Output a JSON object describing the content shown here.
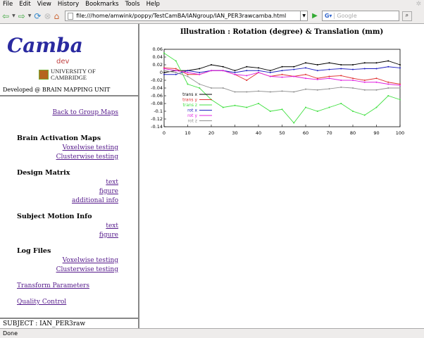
{
  "browser": {
    "menu": [
      "File",
      "Edit",
      "View",
      "History",
      "Bookmarks",
      "Tools",
      "Help"
    ],
    "url": "file:///home/amwink/poppy/TestCamBA/IANgroup/IAN_PER3rawcamba.html",
    "search_placeholder": "Google",
    "status": "Done"
  },
  "sidebar": {
    "logo": {
      "name": "Camba",
      "sub": "dev",
      "university": "UNIVERSITY OF",
      "university2": "CAMBRIDGE"
    },
    "developed": "Developed @ BRAIN MAPPING UNIT",
    "back": "Back to Group Maps",
    "sections": {
      "activation": {
        "title": "Brain Activation Maps",
        "links": [
          "Voxelwise testing",
          "Clusterwise testing"
        ]
      },
      "design": {
        "title": "Design Matrix",
        "links": [
          "text",
          "figure",
          "additional info"
        ]
      },
      "motion": {
        "title": "Subject Motion Info",
        "links": [
          "text",
          "figure"
        ]
      },
      "log": {
        "title": "Log Files",
        "links": [
          "Voxelwise testing",
          "Clusterwise testing"
        ]
      }
    },
    "transform": "Transform Parameters",
    "quality": "Quality Control",
    "subject": "SUBJECT : IAN_PER3raw"
  },
  "main": {
    "title": "Illustration : Rotation (degree) & Translation (mm)"
  },
  "chart_data": {
    "type": "line",
    "title": "",
    "xlim": [
      0,
      100
    ],
    "ylim": [
      -0.14,
      0.06
    ],
    "xticks": [
      0,
      10,
      20,
      30,
      40,
      50,
      60,
      70,
      80,
      90,
      100
    ],
    "yticks": [
      0.06,
      0.04,
      0.02,
      0,
      -0.02,
      -0.04,
      -0.06,
      -0.08,
      -0.1,
      -0.12,
      -0.14
    ],
    "yticklabels": [
      "0.06",
      "0.04",
      "0.02",
      "0",
      "-0.02",
      "-0.04",
      "-0.06",
      "-0.08",
      "-0.1",
      "-0.12",
      "-0.14"
    ],
    "legend_position": "bottom-left",
    "grid": false,
    "x": [
      0,
      5,
      10,
      15,
      20,
      25,
      30,
      35,
      40,
      45,
      50,
      55,
      60,
      65,
      70,
      75,
      80,
      85,
      90,
      95,
      100
    ],
    "series": [
      {
        "name": "trans x",
        "color": "#000000",
        "values": [
          0,
          0.005,
          0.005,
          0.01,
          0.02,
          0.015,
          0.005,
          0.015,
          0.012,
          0.005,
          0.015,
          0.015,
          0.025,
          0.02,
          0.025,
          0.02,
          0.02,
          0.025,
          0.025,
          0.03,
          0.02
        ]
      },
      {
        "name": "trans y",
        "color": "#e03030",
        "values": [
          0.012,
          0.01,
          -0.005,
          -0.005,
          0.005,
          0.005,
          -0.005,
          -0.02,
          0,
          -0.01,
          -0.005,
          -0.01,
          -0.005,
          -0.015,
          -0.01,
          -0.008,
          -0.015,
          -0.02,
          -0.015,
          -0.025,
          -0.03
        ]
      },
      {
        "name": "trans z",
        "color": "#40e040",
        "values": [
          0.05,
          0.03,
          -0.03,
          -0.04,
          -0.07,
          -0.09,
          -0.085,
          -0.09,
          -0.08,
          -0.1,
          -0.095,
          -0.13,
          -0.09,
          -0.1,
          -0.09,
          -0.08,
          -0.1,
          -0.11,
          -0.09,
          -0.06,
          -0.07
        ]
      },
      {
        "name": "rot x",
        "color": "#2020c0",
        "values": [
          -0.005,
          -0.005,
          0.005,
          0,
          0.005,
          0.005,
          0,
          0.005,
          0.005,
          0,
          0.005,
          0.008,
          0.012,
          0.005,
          0.008,
          0.01,
          0.008,
          0.01,
          0.01,
          0.015,
          0.012
        ]
      },
      {
        "name": "rot y",
        "color": "#e020e0",
        "values": [
          0.01,
          0.005,
          0,
          -0.005,
          0.005,
          0.005,
          -0.005,
          -0.008,
          0,
          -0.01,
          -0.012,
          -0.01,
          -0.015,
          -0.018,
          -0.015,
          -0.02,
          -0.02,
          -0.025,
          -0.025,
          -0.03,
          -0.033
        ]
      },
      {
        "name": "rot z",
        "color": "#909090",
        "values": [
          0.005,
          0,
          -0.01,
          -0.03,
          -0.04,
          -0.04,
          -0.05,
          -0.05,
          -0.048,
          -0.05,
          -0.048,
          -0.05,
          -0.043,
          -0.045,
          -0.042,
          -0.038,
          -0.04,
          -0.045,
          -0.045,
          -0.04,
          -0.04
        ]
      }
    ]
  }
}
